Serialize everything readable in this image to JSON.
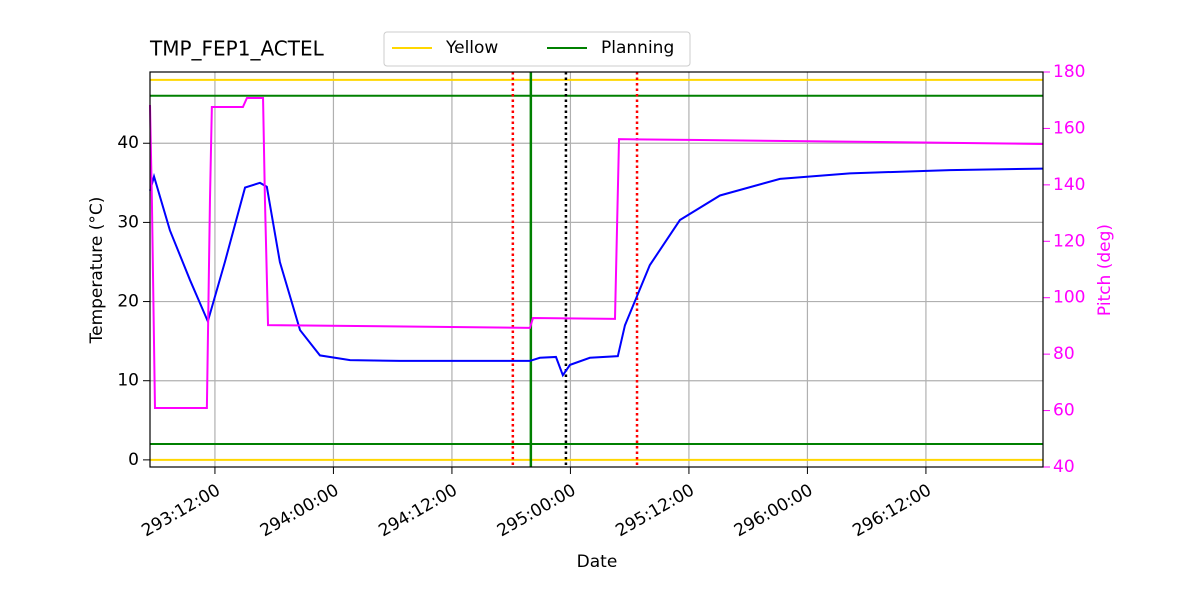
{
  "chart_data": {
    "type": "line",
    "title": "TMP_FEP1_ACTEL",
    "xlabel": "Date",
    "ylabel": "Temperature (°C)",
    "y2label": "Pitch (deg)",
    "xlim": [
      293.226,
      296.994
    ],
    "xticks": [
      {
        "value": 293.5,
        "label": "293:12:00"
      },
      {
        "value": 294.0,
        "label": "294:00:00"
      },
      {
        "value": 294.5,
        "label": "294:12:00"
      },
      {
        "value": 295.0,
        "label": "295:00:00"
      },
      {
        "value": 295.5,
        "label": "295:12:00"
      },
      {
        "value": 296.0,
        "label": "296:00:00"
      },
      {
        "value": 296.5,
        "label": "296:12:00"
      }
    ],
    "ylim": [
      -0.9,
      49
    ],
    "yticks": [
      0,
      10,
      20,
      30,
      40
    ],
    "y2lim": [
      40,
      180
    ],
    "y2ticks": [
      40,
      60,
      80,
      100,
      120,
      140,
      160,
      180
    ],
    "y2color": "#ff00ff",
    "grid": true,
    "legend": "upper center",
    "series": [
      {
        "color": "#0000ff",
        "x": [
          293.226,
          293.243,
          293.31,
          293.395,
          293.47,
          293.542,
          293.627,
          293.69,
          293.719,
          293.774,
          293.859,
          293.943,
          294.07,
          294.281,
          294.829,
          294.871,
          294.939,
          294.968,
          294.998,
          295.082,
          295.2,
          295.23,
          295.335,
          295.462,
          295.631,
          295.884,
          296.179,
          296.601,
          296.994
        ],
        "values": [
          34,
          35.8,
          29,
          22.7,
          17.5,
          25,
          34.4,
          35,
          34.5,
          25,
          16.4,
          13.2,
          12.6,
          12.5,
          12.5,
          12.9,
          13,
          10.7,
          12,
          12.9,
          13.1,
          17,
          24.6,
          30.3,
          33.4,
          35.5,
          36.2,
          36.6,
          36.8
        ]
      },
      {
        "color": "#ff00ff",
        "axis": "y2",
        "x": [
          293.226,
          293.234,
          293.247,
          293.466,
          293.479,
          293.487,
          293.618,
          293.635,
          293.703,
          293.711,
          293.724,
          294.829,
          294.842,
          295.188,
          295.205,
          295.546,
          296.994
        ],
        "values": [
          168.3,
          134.6,
          60.9,
          60.9,
          134.6,
          167.6,
          167.6,
          170.8,
          170.8,
          134.6,
          90.3,
          89.3,
          92.8,
          92.5,
          156.2,
          155.9,
          154.5
        ]
      }
    ],
    "hlines": [
      {
        "name": "Yellow",
        "color": "#ffd700",
        "values": [
          0,
          48
        ]
      },
      {
        "name": "Planning",
        "color": "#008000",
        "values": [
          2,
          46
        ]
      }
    ],
    "vlines": [
      {
        "color": "#ff0000",
        "style": "dotted",
        "x": [
          294.757,
          295.281
        ]
      },
      {
        "color": "#008000",
        "style": "solid",
        "x": [
          294.833
        ]
      },
      {
        "color": "#000000",
        "style": "dotted",
        "x": [
          294.981
        ]
      }
    ]
  }
}
